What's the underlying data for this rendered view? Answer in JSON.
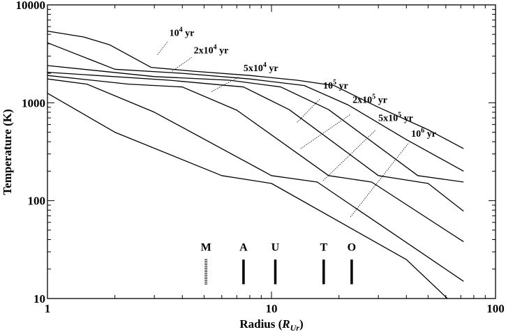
{
  "chart_data": {
    "type": "line",
    "xlabel_main": "Radius (",
    "xlabel_var": "R",
    "xlabel_sub": "Ur",
    "xlabel_end": ")",
    "ylabel": "Temperature (K)",
    "x_scale": "log",
    "y_scale": "log",
    "xlim": [
      1,
      100
    ],
    "ylim": [
      10,
      10000
    ],
    "grid": false,
    "x_ticks": [
      {
        "value": 1,
        "label": "1"
      },
      {
        "value": 10,
        "label": "10"
      },
      {
        "value": 100,
        "label": "100"
      }
    ],
    "y_ticks": [
      {
        "value": 10,
        "label": "10"
      },
      {
        "value": 100,
        "label": "100"
      },
      {
        "value": 1000,
        "label": "1000"
      },
      {
        "value": 10000,
        "label": "10000"
      }
    ],
    "series": [
      {
        "base": "10",
        "exp": "4",
        "unit": " yr",
        "points": [
          [
            1,
            5400
          ],
          [
            1.45,
            4700
          ],
          [
            1.9,
            3900
          ],
          [
            2.9,
            2300
          ],
          [
            4.5,
            2100
          ],
          [
            8,
            1900
          ],
          [
            13,
            1700
          ],
          [
            19,
            1500
          ],
          [
            30,
            900
          ],
          [
            50,
            530
          ],
          [
            72,
            340
          ]
        ],
        "label_pos": [
          3.5,
          4800
        ],
        "leader": [
          [
            3.1,
            3100
          ],
          [
            3.45,
            4250
          ]
        ]
      },
      {
        "base": "2x10",
        "exp": "4",
        "unit": " yr",
        "points": [
          [
            1,
            4100
          ],
          [
            2,
            2200
          ],
          [
            4,
            2000
          ],
          [
            8,
            1750
          ],
          [
            14,
            1500
          ],
          [
            22,
            950
          ],
          [
            40,
            420
          ],
          [
            72,
            200
          ]
        ],
        "label_pos": [
          4.5,
          3200
        ],
        "leader": [
          [
            3.6,
            2100
          ],
          [
            4.4,
            2900
          ]
        ]
      },
      {
        "base": "5x10",
        "exp": "4",
        "unit": " yr",
        "points": [
          [
            1,
            2400
          ],
          [
            3,
            1850
          ],
          [
            6.5,
            1700
          ],
          [
            11,
            1450
          ],
          [
            18,
            850
          ],
          [
            45,
            180
          ],
          [
            72,
            155
          ]
        ],
        "label_pos": [
          7.5,
          2100
        ],
        "leader": [
          [
            5.4,
            1300
          ],
          [
            7.2,
            1850
          ]
        ]
      },
      {
        "base": "10",
        "exp": "5",
        "unit": " yr",
        "points": [
          [
            1,
            2050
          ],
          [
            3.5,
            1700
          ],
          [
            7.5,
            1450
          ],
          [
            12,
            850
          ],
          [
            30,
            180
          ],
          [
            50,
            150
          ],
          [
            72,
            78
          ]
        ],
        "label_pos": [
          17,
          1400
        ],
        "leader": [
          [
            13,
            630
          ],
          [
            16.5,
            1100
          ]
        ]
      },
      {
        "base": "2x10",
        "exp": "5",
        "unit": " yr",
        "points": [
          [
            1,
            1900
          ],
          [
            2.3,
            1550
          ],
          [
            4,
            1450
          ],
          [
            7,
            840
          ],
          [
            18,
            180
          ],
          [
            28,
            155
          ],
          [
            72,
            38
          ]
        ],
        "label_pos": [
          23,
          1000
        ],
        "leader": [
          [
            13.5,
            340
          ],
          [
            22.5,
            760
          ]
        ]
      },
      {
        "base": "5x10",
        "exp": "5",
        "unit": " yr",
        "points": [
          [
            1,
            1750
          ],
          [
            1.5,
            1550
          ],
          [
            3,
            800
          ],
          [
            10,
            180
          ],
          [
            16,
            155
          ],
          [
            72,
            15
          ]
        ],
        "label_pos": [
          30,
          650
        ],
        "leader": [
          [
            17,
            160
          ],
          [
            29,
            520
          ]
        ]
      },
      {
        "base": "10",
        "exp": "6",
        "unit": " yr",
        "points": [
          [
            1,
            1250
          ],
          [
            2,
            500
          ],
          [
            6,
            180
          ],
          [
            10,
            150
          ],
          [
            40,
            25
          ],
          [
            61,
            10
          ]
        ],
        "label_pos": [
          42,
          450
        ],
        "leader": [
          [
            22.5,
            68
          ],
          [
            41,
            390
          ]
        ]
      }
    ],
    "moons": [
      {
        "label": "M",
        "radius": 5.1,
        "style": "hatched"
      },
      {
        "label": "A",
        "radius": 7.5,
        "style": "solid"
      },
      {
        "label": "U",
        "radius": 10.4,
        "style": "solid"
      },
      {
        "label": "T",
        "radius": 17.1,
        "style": "solid"
      },
      {
        "label": "O",
        "radius": 22.8,
        "style": "solid"
      }
    ],
    "moon_tick_range": [
      14,
      25
    ],
    "moon_label_y": 34
  }
}
